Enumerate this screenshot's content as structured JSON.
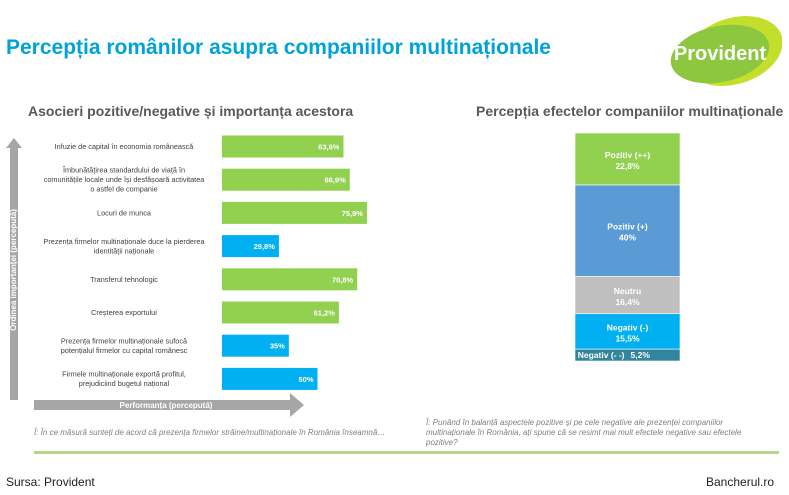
{
  "title": "Percepția românilor asupra companiilor multinaționale",
  "logo_text": "Provident",
  "left_subtitle": "Asocieri pozitive/negative și importanța acestora",
  "right_subtitle": "Percepția efectelor companiilor multinaționale",
  "note_left": "Î: În ce măsură sunteți de acord că prezența firmelor străine/multinaționale în România înseamnă…",
  "note_right": "Î: Punând în balanță aspectele pozitive și pe cele negative ale prezenței companiilor multinaționale în România, ați spune că se resimt mai mult efectele negative sau efectele pozitive?",
  "source": "Sursa: Provident",
  "site": "Bancherul.ro",
  "colors": {
    "title": "#00a3d9",
    "positive": "#92d050",
    "negative": "#00b0f0",
    "pos_strong": "#92d050",
    "pos": "#5b9bd5",
    "neutral": "#bfbfbf",
    "neg": "#00b0f0",
    "neg_strong": "#31859c",
    "arrow": "#a6a6a6",
    "logo_green": "#8dc63f",
    "logo_lime": "#c4df2b"
  },
  "chart_data": [
    {
      "type": "bar",
      "orientation": "horizontal",
      "categories": [
        "Infuzie de capital în economia românească",
        "Îmbunătățirea standardului de viață în comunitățile locale unde își desfășoară activitatea o astfel de companie",
        "Locuri de munca",
        "Prezența firmelor multinaționale duce la pierderea identității naționale",
        "Transferul tehnologic",
        "Creșterea exportului",
        "Prezența firmelor multinaționale sufocă potențialul firmelor cu capital românesc",
        "Firmele multinaționale exportă profitul, prejudiciind bugetul național"
      ],
      "category_lines": [
        [
          "Infuzie de capital în economia românească"
        ],
        [
          "Îmbunătățirea standardului de viață în",
          "comunitățile locale unde își desfășoară activitatea",
          "o astfel de companie"
        ],
        [
          "Locuri de munca"
        ],
        [
          "Prezența firmelor multinaționale duce la pierderea",
          "identității naționale"
        ],
        [
          "Transferul tehnologic"
        ],
        [
          "Creșterea exportului"
        ],
        [
          "Prezența firmelor multinaționale sufocă",
          "potențialul firmelor cu capital românesc"
        ],
        [
          "Firmele multinaționale exportă profitul,",
          "prejudiciind bugetul național"
        ]
      ],
      "values": [
        63.6,
        66.9,
        75.9,
        29.8,
        70.8,
        61.2,
        35,
        50
      ],
      "labels": [
        "63,6%",
        "66,9%",
        "75,9%",
        "29,8%",
        "70,8%",
        "61,2%",
        "35%",
        "50%"
      ],
      "polarity": [
        "positive",
        "positive",
        "positive",
        "negative",
        "positive",
        "positive",
        "negative",
        "negative"
      ],
      "xlim": [
        0,
        100
      ],
      "xlabel": "Performanța (percepută)",
      "ylabel": "Ordinea importanței (percepută)"
    },
    {
      "type": "bar",
      "orientation": "stacked-vertical",
      "segments": [
        {
          "name": "Pozitiv (++)",
          "value": 22.8,
          "label": "22,8%",
          "color_key": "pos_strong"
        },
        {
          "name": "Pozitiv (+)",
          "value": 40,
          "label": "40%",
          "color_key": "pos"
        },
        {
          "name": "Neutru",
          "value": 16.4,
          "label": "16,4%",
          "color_key": "neutral"
        },
        {
          "name": "Negativ (-)",
          "value": 15.5,
          "label": "15,5%",
          "color_key": "neg"
        },
        {
          "name": "Negativ (- -)",
          "value": 5.2,
          "label": "5,2%",
          "color_key": "neg_strong"
        }
      ]
    }
  ]
}
